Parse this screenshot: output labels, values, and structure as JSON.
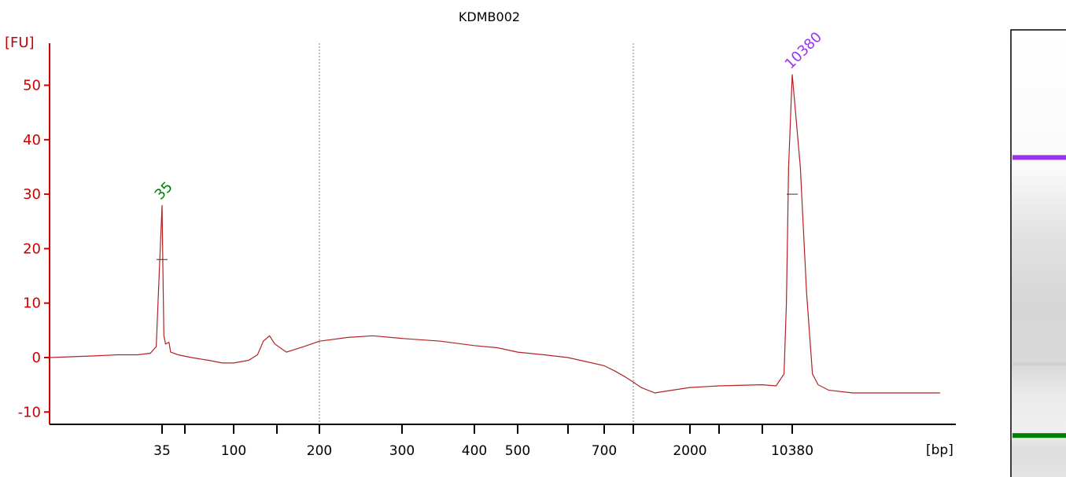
{
  "chart_data": {
    "type": "line",
    "title": "KDMB002",
    "ylabel": "[FU]",
    "xlabel": "[bp]",
    "ylim": [
      -13,
      58
    ],
    "yticks": [
      -10,
      0,
      10,
      20,
      30,
      40,
      50
    ],
    "xtick_labels": [
      "35",
      "100",
      "200",
      "300",
      "400",
      "500",
      "700",
      "2000",
      "10380"
    ],
    "vertical_reference_lines_bp": [
      200,
      1000
    ],
    "peaks": [
      {
        "label": "35",
        "x_bp": 35,
        "height_fu": 28,
        "color": "#008000"
      },
      {
        "label": "10380",
        "x_bp": 10380,
        "height_fu": 52,
        "color": "#9933ee"
      }
    ],
    "series": [
      {
        "color": "#b22222",
        "points_bp_fu": [
          [
            20,
            0
          ],
          [
            25,
            0.3
          ],
          [
            28,
            0.5
          ],
          [
            31,
            0.5
          ],
          [
            33,
            0.8
          ],
          [
            34,
            2
          ],
          [
            34.6,
            18
          ],
          [
            35,
            28
          ],
          [
            35.4,
            18
          ],
          [
            36,
            4
          ],
          [
            37,
            2.5
          ],
          [
            39,
            2.8
          ],
          [
            40,
            1
          ],
          [
            45,
            0.5
          ],
          [
            55,
            0
          ],
          [
            70,
            -0.5
          ],
          [
            85,
            -1
          ],
          [
            100,
            -1
          ],
          [
            115,
            -0.5
          ],
          [
            125,
            0.5
          ],
          [
            132,
            3
          ],
          [
            140,
            4
          ],
          [
            147,
            2.5
          ],
          [
            160,
            1
          ],
          [
            180,
            2
          ],
          [
            200,
            3
          ],
          [
            230,
            3.7
          ],
          [
            260,
            4
          ],
          [
            300,
            3.5
          ],
          [
            350,
            3
          ],
          [
            400,
            2.2
          ],
          [
            450,
            1.8
          ],
          [
            500,
            1
          ],
          [
            550,
            0.5
          ],
          [
            600,
            0
          ],
          [
            700,
            -1.5
          ],
          [
            800,
            -2.5
          ],
          [
            900,
            -3.5
          ],
          [
            1000,
            -4.5
          ],
          [
            1100,
            -5.5
          ],
          [
            1300,
            -6.5
          ],
          [
            1600,
            -6
          ],
          [
            2000,
            -5.5
          ],
          [
            3000,
            -5.2
          ],
          [
            5000,
            -5
          ],
          [
            7000,
            -5.2
          ],
          [
            8500,
            -3
          ],
          [
            9000,
            10
          ],
          [
            9500,
            35
          ],
          [
            10380,
            52
          ],
          [
            11000,
            35
          ],
          [
            11500,
            12
          ],
          [
            12000,
            -3
          ],
          [
            12500,
            -5
          ],
          [
            13500,
            -6
          ],
          [
            16000,
            -6.5
          ],
          [
            20000,
            -6.5
          ],
          [
            25000,
            -6.5
          ],
          [
            30000,
            -6.5
          ]
        ]
      }
    ]
  },
  "gel": {
    "upper_marker_color": "#9933ee",
    "lower_marker_color": "#008000",
    "upper_marker_level_fraction": 0.28,
    "lower_marker_level_fraction": 0.89
  }
}
